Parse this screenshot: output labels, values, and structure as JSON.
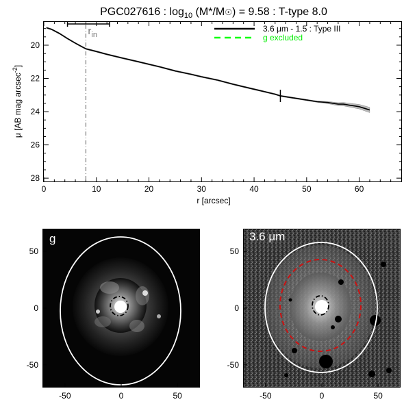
{
  "title": "PGC027616 : log10 (M*/M☉) = 9.58 : T-type 8.0",
  "chart_data": [
    {
      "type": "line",
      "xlabel": "r [arcsec]",
      "ylabel": "μ [AB mag arcsec-2]",
      "xlim": [
        0,
        68
      ],
      "ylim": [
        28.2,
        18.6
      ],
      "y_inverted": true,
      "xticks": [
        0,
        10,
        20,
        30,
        40,
        50,
        60
      ],
      "yticks": [
        20,
        22,
        24,
        26,
        28
      ],
      "legend_position": "top-right",
      "series": [
        {
          "name": "3.6 μm - 1.5 : Type III",
          "color": "#000000",
          "style": "solid",
          "x": [
            0.5,
            1.5,
            3,
            4.5,
            6,
            7,
            8,
            10,
            12,
            15,
            18,
            20,
            22,
            25,
            28,
            30,
            33,
            36,
            38,
            40,
            42,
            44,
            45,
            47,
            50,
            52,
            54,
            56,
            57,
            58,
            59,
            60,
            61,
            62
          ],
          "y": [
            18.95,
            19.05,
            19.3,
            19.6,
            19.88,
            20.05,
            20.22,
            20.38,
            20.55,
            20.78,
            21.0,
            21.15,
            21.3,
            21.55,
            21.75,
            21.9,
            22.1,
            22.35,
            22.5,
            22.65,
            22.8,
            22.95,
            23.05,
            23.15,
            23.3,
            23.4,
            23.45,
            23.55,
            23.55,
            23.6,
            23.65,
            23.7,
            23.8,
            23.9
          ]
        },
        {
          "name": "g excluded",
          "color": "#00ff00",
          "style": "dashed",
          "x": [],
          "y": []
        }
      ],
      "annotations": {
        "r_in": {
          "label": "r",
          "subscript": "in",
          "x": 8,
          "range": [
            4.5,
            12.5
          ]
        },
        "break_marker_x": 45
      }
    },
    {
      "type": "image",
      "panel_label": "g",
      "xticks": [
        -50,
        0,
        50
      ],
      "yticks": [
        50,
        0,
        -50
      ],
      "xlim": [
        -70,
        70
      ],
      "ylim": [
        -70,
        70
      ]
    },
    {
      "type": "image",
      "panel_label": "3.6 μm",
      "xticks": [
        -50,
        0,
        50
      ],
      "yticks": [
        50,
        0,
        -50
      ],
      "xlim": [
        -70,
        70
      ],
      "ylim": [
        -70,
        70
      ]
    }
  ],
  "colors": {
    "profile": "#000000",
    "legend_green": "#00ff00",
    "rin_line": "#555555",
    "ellipse_white": "#ffffff",
    "ellipse_red": "#cc1111"
  }
}
